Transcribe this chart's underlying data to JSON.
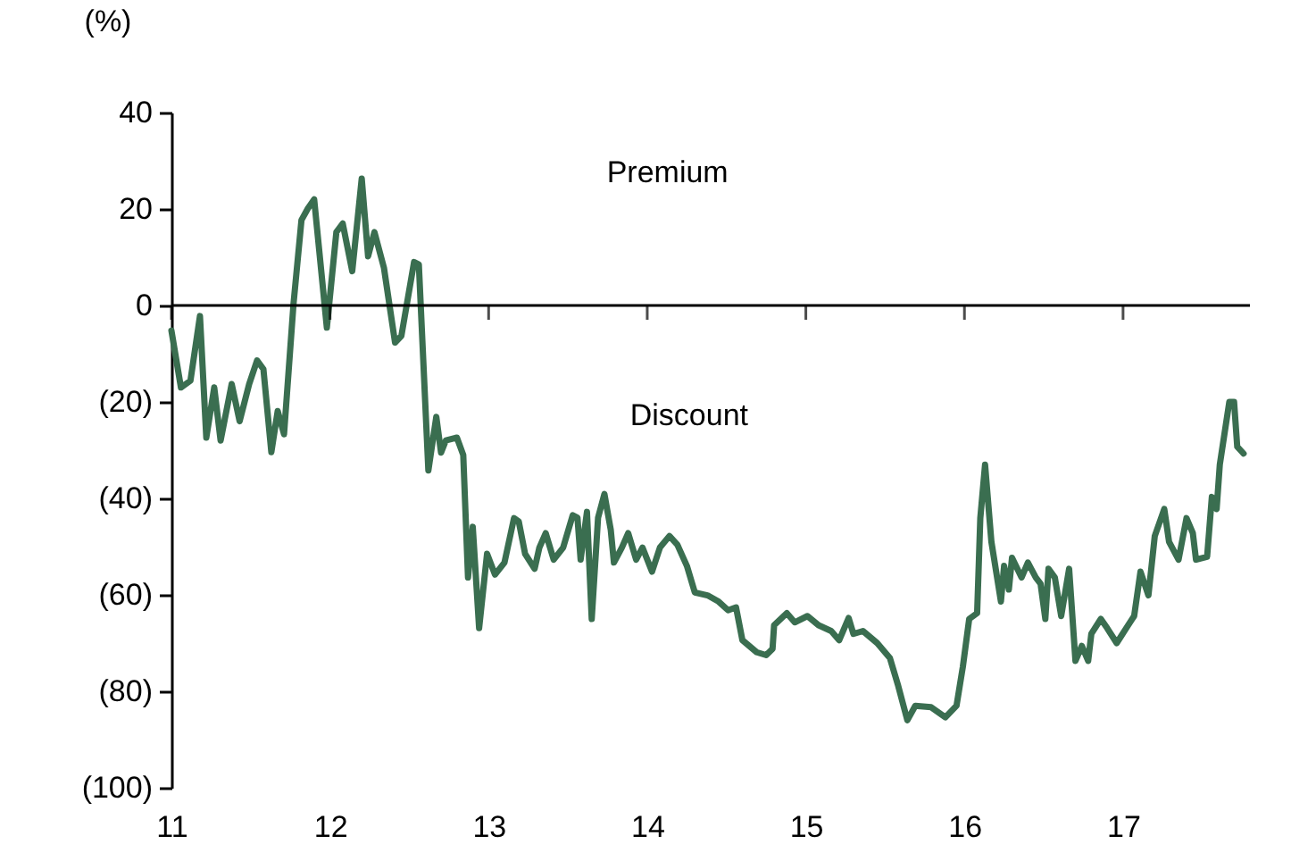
{
  "chart_data": {
    "type": "line",
    "ylabel": "(%)",
    "annotations": [
      "Premium",
      "Discount"
    ],
    "xlim": [
      11,
      17.8
    ],
    "xticks": [
      11,
      12,
      13,
      14,
      15,
      16,
      17
    ],
    "ylim": [
      -100,
      40
    ],
    "yticks": [
      {
        "value": -100,
        "label": "(100)"
      },
      {
        "value": -80,
        "label": "(80)"
      },
      {
        "value": -60,
        "label": "(60)"
      },
      {
        "value": -40,
        "label": "(40)"
      },
      {
        "value": -20,
        "label": "(20)"
      },
      0,
      20,
      40
    ],
    "grid": false,
    "marker": "none",
    "line_style": "solid",
    "ref_lines": [
      {
        "axis": "y",
        "value": 0,
        "color": "#000000"
      }
    ],
    "x": [
      11.0,
      11.06,
      11.12,
      11.18,
      11.22,
      11.27,
      11.31,
      11.38,
      11.43,
      11.49,
      11.54,
      11.58,
      11.63,
      11.67,
      11.71,
      11.77,
      11.82,
      11.86,
      11.9,
      11.98,
      12.04,
      12.08,
      12.14,
      12.2,
      12.24,
      12.28,
      12.34,
      12.41,
      12.45,
      12.53,
      12.56,
      12.62,
      12.67,
      12.7,
      12.73,
      12.8,
      12.84,
      12.87,
      12.9,
      12.94,
      12.99,
      13.04,
      13.1,
      13.16,
      13.19,
      13.23,
      13.29,
      13.32,
      13.36,
      13.41,
      13.47,
      13.53,
      13.56,
      13.58,
      13.62,
      13.65,
      13.69,
      13.73,
      13.77,
      13.79,
      13.84,
      13.88,
      13.93,
      13.97,
      14.03,
      14.08,
      14.14,
      14.19,
      14.25,
      14.3,
      14.38,
      14.45,
      14.51,
      14.56,
      14.6,
      14.69,
      14.75,
      14.79,
      14.8,
      14.88,
      14.93,
      15.01,
      15.08,
      15.16,
      15.21,
      15.27,
      15.3,
      15.36,
      15.45,
      15.53,
      15.58,
      15.64,
      15.69,
      15.79,
      15.88,
      15.95,
      15.99,
      16.03,
      16.08,
      16.1,
      16.13,
      16.17,
      16.23,
      16.25,
      16.28,
      16.3,
      16.36,
      16.4,
      16.45,
      16.48,
      16.51,
      16.53,
      16.57,
      16.61,
      16.66,
      16.7,
      16.74,
      16.78,
      16.8,
      16.86,
      16.9,
      16.96,
      17.02,
      17.07,
      17.11,
      17.16,
      17.2,
      17.26,
      17.29,
      17.35,
      17.4,
      17.44,
      17.46,
      17.53,
      17.56,
      17.59,
      17.61,
      17.67,
      17.7,
      17.72,
      17.76
    ],
    "series": [
      {
        "color": "#3a6e50",
        "values": [
          -5.2,
          -17,
          -15.6,
          -2.2,
          -27.4,
          -17,
          -28,
          -16.3,
          -24,
          -16.3,
          -11.4,
          -13.2,
          -30.4,
          -21.9,
          -26.7,
          0.4,
          17.7,
          20.1,
          22,
          -4.6,
          15.2,
          17,
          7.1,
          26.3,
          10.2,
          15.2,
          7.8,
          -7.7,
          -6.3,
          9,
          8.5,
          -34.2,
          -23.1,
          -30.5,
          -28,
          -27.4,
          -31,
          -56.4,
          -45.9,
          -66.9,
          -51.5,
          -55.8,
          -53.3,
          -44.1,
          -44.8,
          -51.5,
          -54.6,
          -50.2,
          -47.2,
          -52.7,
          -50.2,
          -43.5,
          -44,
          -52.7,
          -42.8,
          -65,
          -44,
          -39.1,
          -46.5,
          -53.3,
          -50.2,
          -47.2,
          -52.7,
          -50.2,
          -55.2,
          -50.2,
          -47.8,
          -49.6,
          -54,
          -59.5,
          -60.1,
          -61.4,
          -63.2,
          -62.6,
          -69.4,
          -71.9,
          -72.5,
          -71.2,
          -66.3,
          -63.8,
          -65.7,
          -64.4,
          -66.3,
          -67.5,
          -69.4,
          -64.8,
          -68.1,
          -67.5,
          -70,
          -73.1,
          -78.6,
          -86,
          -83,
          -83.3,
          -85.4,
          -83,
          -74.9,
          -65,
          -63.8,
          -44.1,
          -33,
          -49,
          -61.4,
          -54,
          -58.9,
          -52.3,
          -56.4,
          -53.3,
          -56.4,
          -57.7,
          -65,
          -54.6,
          -56.4,
          -64.4,
          -54.6,
          -73.7,
          -70.6,
          -73.7,
          -68.1,
          -65,
          -66.9,
          -70,
          -66.9,
          -64.4,
          -55.2,
          -60.1,
          -47.8,
          -42.2,
          -49,
          -52.7,
          -44.1,
          -47.2,
          -52.7,
          -52.1,
          -39.7,
          -42.2,
          -33,
          -20,
          -20,
          -29.3,
          -30.7
        ]
      }
    ]
  }
}
